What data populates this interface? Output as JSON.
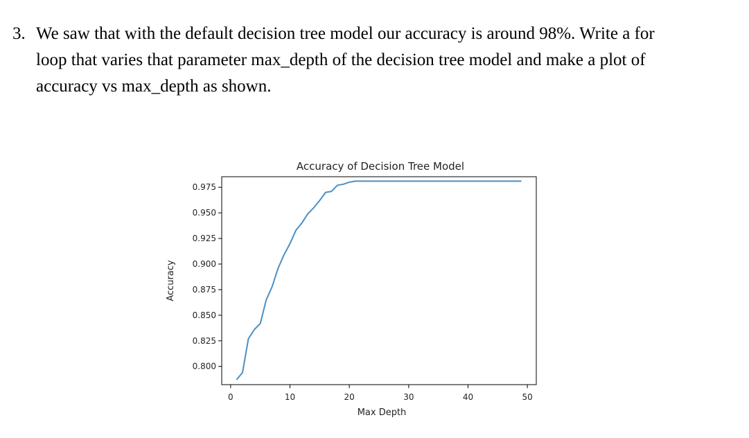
{
  "question": {
    "number": "3.",
    "lines": [
      "We saw that with the default decision tree model our accuracy is around 98%. Write a for",
      "loop that varies that parameter max_depth of the decision tree model and make a plot of",
      "accuracy vs max_depth as shown."
    ]
  },
  "chart_data": {
    "type": "line",
    "title": "Accuracy of Decision Tree Model",
    "xlabel": "Max Depth",
    "ylabel": "Accuracy",
    "xlim": [
      -1.5,
      51.5
    ],
    "ylim": [
      0.7822,
      0.9853
    ],
    "xticks": [
      0,
      10,
      20,
      30,
      40,
      50
    ],
    "xtick_labels": [
      "0",
      "10",
      "20",
      "30",
      "40",
      "50"
    ],
    "yticks": [
      0.8,
      0.825,
      0.85,
      0.875,
      0.9,
      0.925,
      0.95,
      0.975
    ],
    "ytick_labels": [
      "0.800",
      "0.825",
      "0.850",
      "0.875",
      "0.900",
      "0.925",
      "0.950",
      "0.975"
    ],
    "grid": false,
    "line_color": "#4a8fc4",
    "series": [
      {
        "x": [
          1,
          2,
          3,
          4,
          5,
          6,
          7,
          8,
          9,
          10,
          11,
          12,
          13,
          14,
          15,
          16,
          17,
          18,
          19,
          20,
          21,
          22,
          23,
          24,
          25,
          26,
          27,
          28,
          29,
          30,
          31,
          32,
          33,
          34,
          35,
          36,
          37,
          38,
          39,
          40,
          41,
          42,
          43,
          44,
          45,
          46,
          47,
          48,
          49
        ],
        "y": [
          0.787,
          0.794,
          0.827,
          0.836,
          0.842,
          0.865,
          0.878,
          0.896,
          0.909,
          0.92,
          0.933,
          0.94,
          0.949,
          0.955,
          0.962,
          0.97,
          0.971,
          0.977,
          0.978,
          0.98,
          0.981,
          0.981,
          0.981,
          0.981,
          0.981,
          0.981,
          0.981,
          0.981,
          0.981,
          0.981,
          0.981,
          0.981,
          0.981,
          0.981,
          0.981,
          0.981,
          0.981,
          0.981,
          0.981,
          0.981,
          0.981,
          0.981,
          0.981,
          0.981,
          0.981,
          0.981,
          0.981,
          0.981,
          0.981
        ]
      }
    ]
  }
}
